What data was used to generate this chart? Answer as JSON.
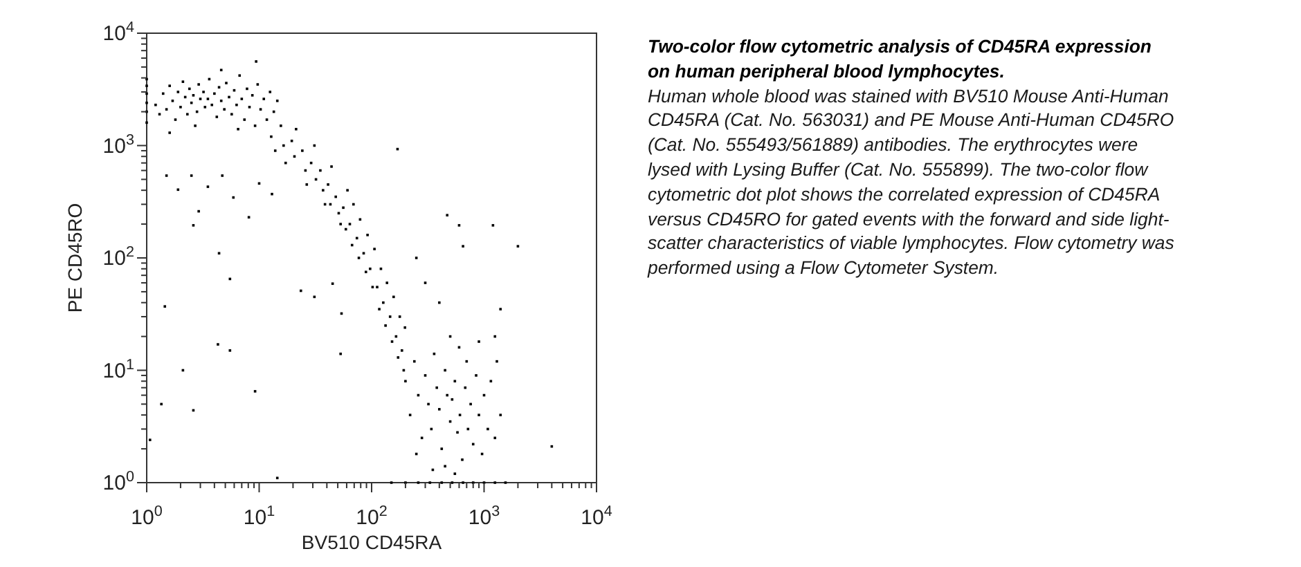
{
  "chart_data": {
    "type": "scatter",
    "title": "Two-color flow cytometric analysis of CD45RA expression on human peripheral blood lymphocytes.",
    "annotations": [
      "Human whole blood was stained with BV510 Mouse Anti-Human CD45RA (Cat. No. 563031) and PE Mouse Anti-Human CD45RO (Cat. No. 555493/561889) antibodies. The erythrocytes were lysed with Lysing Buffer (Cat. No. 555899). The two-color flow cytometric dot plot shows the correlated expression of CD45RA versus CD45RO for gated events with the forward and side light-scatter characteristics of viable lymphocytes. Flow cytometry was performed using a Flow Cytometer System."
    ],
    "xlabel": "BV510 CD45RA",
    "ylabel": "PE CD45RO",
    "log": "xy",
    "marker": "square",
    "xlim": [
      1,
      10000
    ],
    "ylim": [
      1,
      10000
    ],
    "xticks": [
      {
        "value": 1,
        "label": "10$^{0}$"
      },
      {
        "value": 2,
        "label": null
      },
      {
        "value": 3,
        "label": null
      },
      {
        "value": 4,
        "label": null
      },
      {
        "value": 5,
        "label": null
      },
      {
        "value": 6,
        "label": null
      },
      {
        "value": 7,
        "label": null
      },
      {
        "value": 8,
        "label": null
      },
      {
        "value": 9,
        "label": null
      },
      {
        "value": 10,
        "label": "10$^{1}$"
      },
      {
        "value": 20,
        "label": null
      },
      {
        "value": 30,
        "label": null
      },
      {
        "value": 40,
        "label": null
      },
      {
        "value": 50,
        "label": null
      },
      {
        "value": 60,
        "label": null
      },
      {
        "value": 70,
        "label": null
      },
      {
        "value": 80,
        "label": null
      },
      {
        "value": 90,
        "label": null
      },
      {
        "value": 100,
        "label": "10$^{2}$"
      },
      {
        "value": 200,
        "label": null
      },
      {
        "value": 300,
        "label": null
      },
      {
        "value": 400,
        "label": null
      },
      {
        "value": 500,
        "label": null
      },
      {
        "value": 600,
        "label": null
      },
      {
        "value": 700,
        "label": null
      },
      {
        "value": 800,
        "label": null
      },
      {
        "value": 900,
        "label": null
      },
      {
        "value": 1000,
        "label": "10$^{3}$"
      },
      {
        "value": 2000,
        "label": null
      },
      {
        "value": 3000,
        "label": null
      },
      {
        "value": 4000,
        "label": null
      },
      {
        "value": 5000,
        "label": null
      },
      {
        "value": 6000,
        "label": null
      },
      {
        "value": 7000,
        "label": null
      },
      {
        "value": 8000,
        "label": null
      },
      {
        "value": 9000,
        "label": null
      },
      {
        "value": 10000,
        "label": "10$^{4}$"
      }
    ],
    "yticks": [
      {
        "value": 1,
        "label": "10$^{0}$"
      },
      {
        "value": 2,
        "label": null
      },
      {
        "value": 3,
        "label": null
      },
      {
        "value": 4,
        "label": null
      },
      {
        "value": 5,
        "label": null
      },
      {
        "value": 6,
        "label": null
      },
      {
        "value": 7,
        "label": null
      },
      {
        "value": 8,
        "label": null
      },
      {
        "value": 9,
        "label": null
      },
      {
        "value": 10,
        "label": "10$^{1}$"
      },
      {
        "value": 20,
        "label": null
      },
      {
        "value": 30,
        "label": null
      },
      {
        "value": 40,
        "label": null
      },
      {
        "value": 50,
        "label": null
      },
      {
        "value": 60,
        "label": null
      },
      {
        "value": 70,
        "label": null
      },
      {
        "value": 80,
        "label": null
      },
      {
        "value": 90,
        "label": null
      },
      {
        "value": 100,
        "label": "10$^{2}$"
      },
      {
        "value": 200,
        "label": null
      },
      {
        "value": 300,
        "label": null
      },
      {
        "value": 400,
        "label": null
      },
      {
        "value": 500,
        "label": null
      },
      {
        "value": 600,
        "label": null
      },
      {
        "value": 700,
        "label": null
      },
      {
        "value": 800,
        "label": null
      },
      {
        "value": 900,
        "label": null
      },
      {
        "value": 1000,
        "label": "10$^{3}$"
      },
      {
        "value": 2000,
        "label": null
      },
      {
        "value": 3000,
        "label": null
      },
      {
        "value": 4000,
        "label": null
      },
      {
        "value": 5000,
        "label": null
      },
      {
        "value": 6000,
        "label": null
      },
      {
        "value": 7000,
        "label": null
      },
      {
        "value": 8000,
        "label": null
      },
      {
        "value": 9000,
        "label": null
      },
      {
        "value": 10000,
        "label": "10$^{4}$"
      }
    ],
    "series": [
      {
        "color": "#000000",
        "x": [
          1.2,
          1.3,
          1.4,
          1.5,
          1.6,
          1.7,
          1.8,
          1.9,
          2,
          2.1,
          2.2,
          2.3,
          2.4,
          2.5,
          2.6,
          2.8,
          2.9,
          3,
          3.2,
          3.3,
          3.5,
          3.6,
          3.8,
          4,
          4.2,
          4.4,
          4.6,
          4.9,
          5.1,
          5.4,
          5.7,
          6,
          6.3,
          6.7,
          7,
          7.4,
          7.8,
          8.2,
          8.7,
          9.2,
          9.7,
          10.3,
          11,
          11.7,
          12.5,
          13.5,
          14.5,
          9.4,
          4.6,
          1.6,
          2.7,
          6.5,
          12.8,
          13.9,
          15.6,
          16.5,
          17.2,
          19.5,
          20.6,
          21.3,
          24.2,
          25.8,
          26.5,
          29,
          31,
          32,
          35,
          37,
          38.5,
          41,
          43,
          44,
          48,
          51,
          53,
          56,
          59,
          61,
          64,
          67,
          69,
          74,
          77,
          79,
          85,
          89,
          92,
          97,
          102,
          106,
          112,
          117,
          121,
          127,
          133,
          137,
          146,
          152,
          157,
          165,
          172,
          178,
          186,
          193,
          198,
          200,
          220,
          240,
          260,
          280,
          300,
          320,
          340,
          360,
          380,
          400,
          420,
          450,
          470,
          500,
          520,
          550,
          580,
          610,
          640,
          680,
          720,
          760,
          800,
          850,
          900,
          960,
          1000,
          1080,
          1150,
          1250,
          1400,
          1300,
          700,
          600,
          450,
          350,
          250,
          550,
          170,
          470,
          600,
          1200,
          650,
          2000,
          1400,
          1250,
          4000,
          300,
          400,
          250,
          500,
          900,
          1.5,
          1.9,
          2.9,
          3.5,
          2.5,
          4.7,
          5.9,
          8.1,
          2.6,
          4.4,
          10,
          13,
          1.45,
          5.5,
          4.3,
          5.5,
          2.1,
          1.35,
          2.6,
          9.2,
          1.07,
          14.5,
          23.5,
          31,
          53,
          54,
          45,
          1,
          1,
          1,
          1,
          1,
          1,
          150,
          200,
          260,
          330,
          420,
          520,
          650,
          800,
          1000,
          1250,
          1550
        ],
        "values": [
          2300,
          1900,
          2900,
          2100,
          3400,
          2500,
          1700,
          3000,
          2200,
          3700,
          2700,
          1900,
          3200,
          2400,
          2800,
          2000,
          3500,
          2600,
          3000,
          2200,
          2600,
          3900,
          2300,
          2900,
          1800,
          3300,
          2500,
          2100,
          3600,
          2700,
          1900,
          3100,
          2300,
          4200,
          2600,
          1700,
          3200,
          2200,
          2800,
          1500,
          3500,
          2100,
          2600,
          1700,
          3000,
          2000,
          2500,
          5600,
          4700,
          1300,
          1500,
          1400,
          1200,
          900,
          1500,
          1000,
          700,
          1100,
          800,
          1400,
          900,
          600,
          450,
          700,
          1000,
          500,
          600,
          400,
          300,
          450,
          300,
          650,
          350,
          250,
          200,
          280,
          180,
          400,
          200,
          130,
          300,
          150,
          100,
          220,
          110,
          75,
          160,
          80,
          55,
          120,
          55,
          35,
          80,
          40,
          25,
          60,
          30,
          18,
          45,
          20,
          13,
          30,
          15,
          10,
          24,
          8,
          4,
          12,
          6,
          2.5,
          9,
          5,
          3,
          14,
          7,
          4.5,
          2,
          10,
          6,
          3.5,
          5.5,
          8,
          2.8,
          4,
          1.6,
          7,
          3,
          5,
          2.2,
          9,
          4,
          1.8,
          6,
          3,
          8,
          2.5,
          4,
          12,
          12,
          16,
          1.4,
          1.3,
          1.8,
          1.2,
          930,
          240,
          195,
          195,
          127,
          127,
          35,
          20,
          2.1,
          60,
          40,
          100,
          20,
          18,
          540,
          405,
          260,
          430,
          540,
          540,
          345,
          230,
          195,
          110,
          460,
          370,
          37,
          65,
          17,
          15,
          10,
          5,
          4.4,
          6.5,
          2.4,
          1.1,
          51,
          45,
          14,
          32,
          59,
          1600,
          2000,
          2400,
          2900,
          3400,
          3900,
          1,
          1,
          1,
          1,
          1,
          1,
          1,
          1,
          1,
          1,
          1
        ]
      }
    ]
  }
}
